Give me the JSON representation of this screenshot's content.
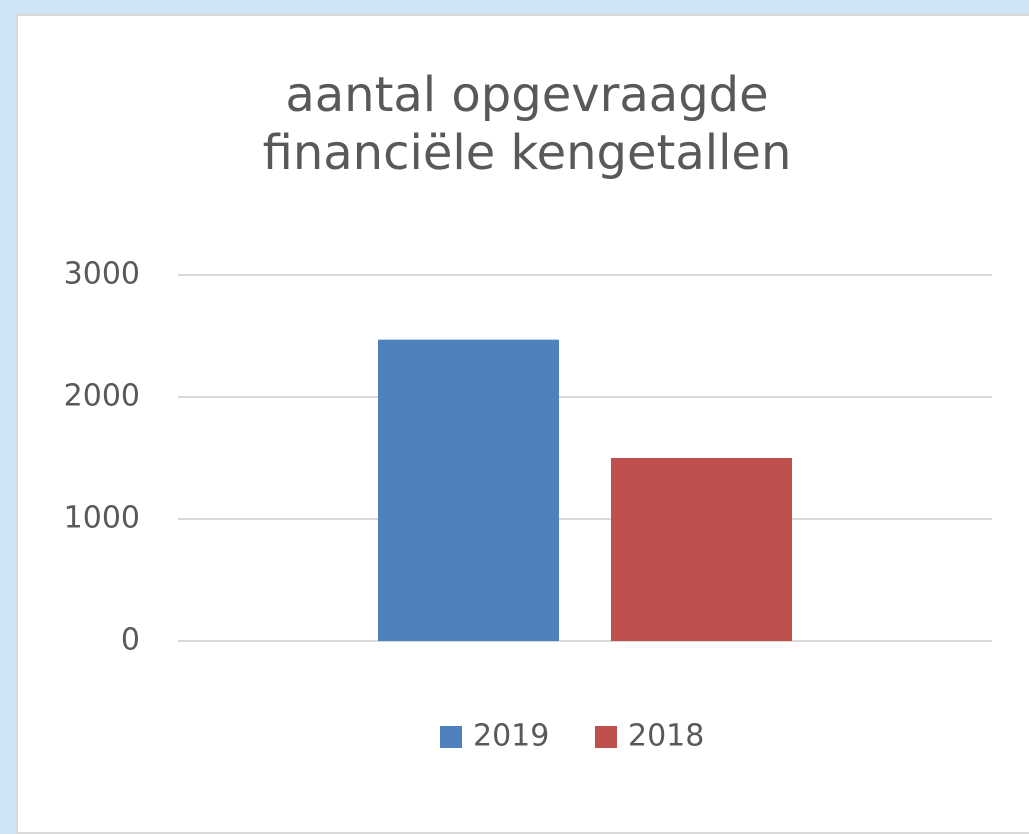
{
  "chart_data": {
    "type": "bar",
    "title": "aantal opgevraagde financiële kengetallen",
    "categories": [
      null
    ],
    "series": [
      {
        "name": "2019",
        "color": "#4f81bd",
        "values": [
          2470
        ]
      },
      {
        "name": "2018",
        "color": "#c0504d",
        "values": [
          1500
        ]
      }
    ],
    "ylim": [
      0,
      3000
    ],
    "yticks": [
      0,
      1000,
      2000,
      3000
    ],
    "grid": true,
    "legend": "bottom"
  }
}
